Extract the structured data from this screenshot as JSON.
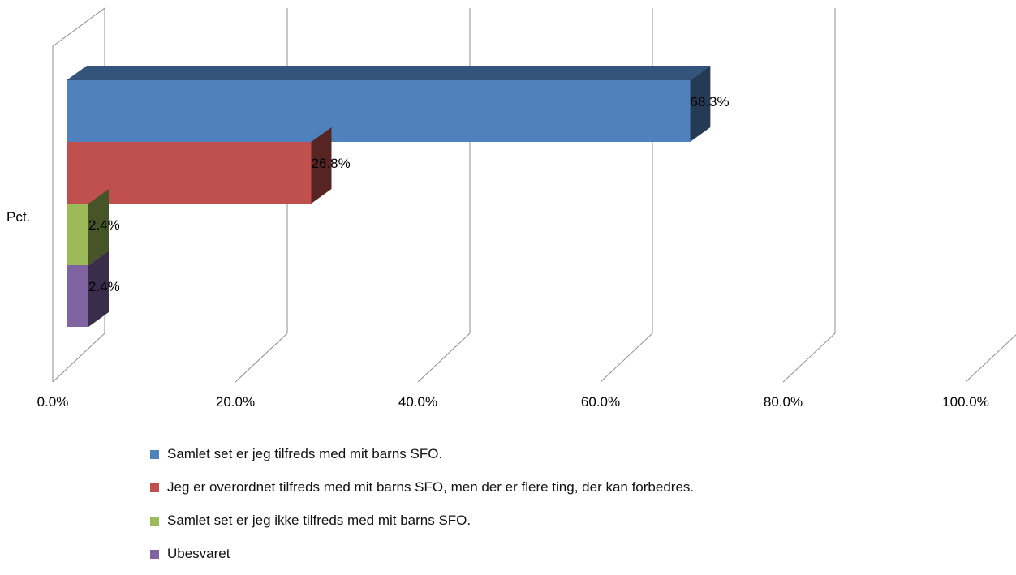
{
  "chart_data": {
    "type": "bar",
    "orientation": "horizontal",
    "three_d": true,
    "category": "Pct.",
    "xlim": [
      0,
      100
    ],
    "tick_labels": [
      "0.0%",
      "20.0%",
      "40.0%",
      "60.0%",
      "80.0%",
      "100.0%"
    ],
    "grid": true,
    "legend_position": "bottom",
    "series": [
      {
        "name": "Samlet set er jeg tilfreds med mit barns SFO.",
        "value": 68.3,
        "label": "68.3%",
        "color": "#4F81BD"
      },
      {
        "name": "Jeg er overordnet tilfreds med mit barns SFO, men der er flere ting, der kan forbedres.",
        "value": 26.8,
        "label": "26.8%",
        "color": "#C0504D"
      },
      {
        "name": "Samlet set er jeg ikke tilfreds med mit barns SFO.",
        "value": 2.4,
        "label": "2.4%",
        "color": "#9BBB59"
      },
      {
        "name": "Ubesvaret",
        "value": 2.4,
        "label": "2.4%",
        "color": "#8064A2"
      }
    ]
  }
}
